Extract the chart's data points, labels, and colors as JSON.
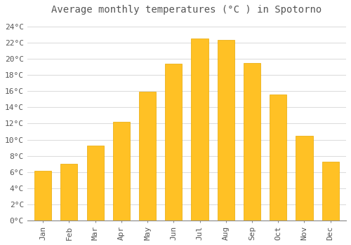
{
  "title": "Average monthly temperatures (°C ) in Spotorno",
  "months": [
    "Jan",
    "Feb",
    "Mar",
    "Apr",
    "May",
    "Jun",
    "Jul",
    "Aug",
    "Sep",
    "Oct",
    "Nov",
    "Dec"
  ],
  "values": [
    6.2,
    7.0,
    9.3,
    12.2,
    15.9,
    19.4,
    22.5,
    22.3,
    19.5,
    15.6,
    10.5,
    7.3
  ],
  "bar_color": "#FFC125",
  "bar_edge_color": "#E8A800",
  "background_color": "#FFFFFF",
  "plot_bg_color": "#FFFFFF",
  "grid_color": "#DDDDDD",
  "text_color": "#555555",
  "ylim": [
    0,
    25
  ],
  "yticks": [
    0,
    2,
    4,
    6,
    8,
    10,
    12,
    14,
    16,
    18,
    20,
    22,
    24
  ],
  "ytick_labels": [
    "0°C",
    "2°C",
    "4°C",
    "6°C",
    "8°C",
    "10°C",
    "12°C",
    "14°C",
    "16°C",
    "18°C",
    "20°C",
    "22°C",
    "24°C"
  ],
  "title_fontsize": 10,
  "tick_fontsize": 8,
  "bar_width": 0.65
}
